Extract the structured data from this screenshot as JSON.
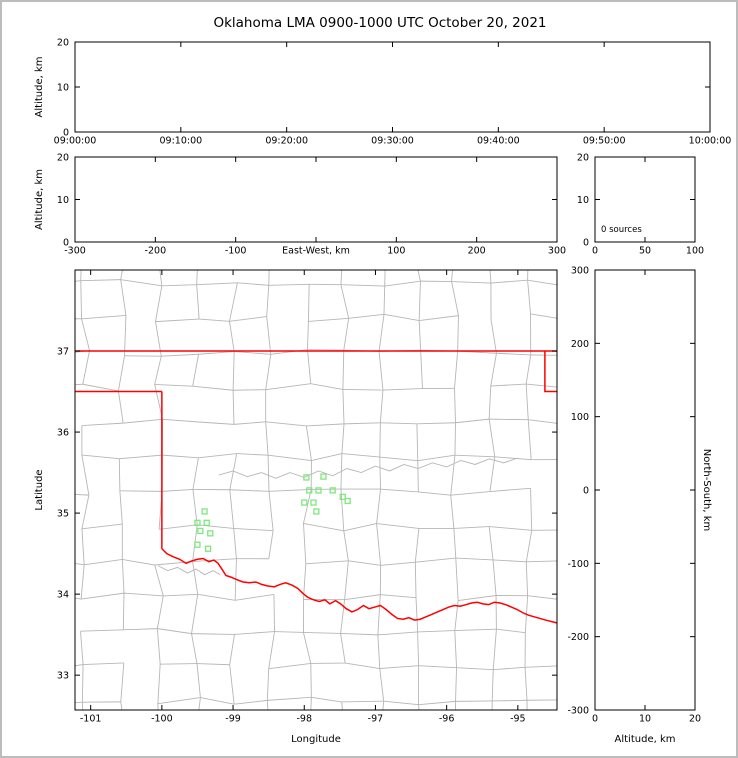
{
  "title": "Oklahoma LMA 0900-1000 UTC October 20, 2021",
  "colors": {
    "axis": "#000000",
    "text": "#000000",
    "county": "#b6b6b6",
    "state_border": "#ff0000",
    "station": "#7de87d",
    "background": "#ffffff",
    "frame": "#bcbcbc"
  },
  "chart_data": [
    {
      "id": "time_height",
      "type": "scatter",
      "title": "",
      "xlabel": "",
      "ylabel": "Altitude, km",
      "xlim": [
        0,
        3600
      ],
      "xticks": [
        0,
        600,
        1200,
        1800,
        2400,
        3000,
        3600
      ],
      "xtick_labels": [
        "09:00:00",
        "09:10:00",
        "09:20:00",
        "09:30:00",
        "09:40:00",
        "09:50:00",
        "10:00:00"
      ],
      "ylim": [
        0,
        20
      ],
      "yticks": [
        0,
        10,
        20
      ],
      "points": []
    },
    {
      "id": "ew_height",
      "type": "scatter",
      "xlabel": "East-West, km",
      "ylabel": "Altitude, km",
      "xlim": [
        -300,
        300
      ],
      "xticks": [
        -300,
        -200,
        -100,
        0,
        100,
        200,
        300
      ],
      "ylim": [
        0,
        20
      ],
      "yticks": [
        0,
        10,
        20
      ],
      "points": []
    },
    {
      "id": "alt_histogram",
      "type": "line",
      "annotation": "0 sources",
      "xlim": [
        0,
        100
      ],
      "xticks": [
        0,
        50,
        100
      ],
      "ylim": [
        0,
        20
      ],
      "yticks": [
        0,
        10,
        20
      ],
      "points": []
    },
    {
      "id": "plan_map",
      "type": "scatter",
      "xlabel": "Longitude",
      "ylabel": "Latitude",
      "xlim": [
        -101.22,
        -94.45
      ],
      "ylim": [
        32.57,
        38.0
      ],
      "xticks": [
        -101,
        -100,
        -99,
        -98,
        -97,
        -96,
        -95
      ],
      "yticks": [
        33,
        34,
        35,
        36,
        37
      ],
      "stations": [
        [
          -97.97,
          35.44
        ],
        [
          -97.73,
          35.45
        ],
        [
          -97.93,
          35.28
        ],
        [
          -97.8,
          35.28
        ],
        [
          -97.6,
          35.28
        ],
        [
          -98.0,
          35.13
        ],
        [
          -97.87,
          35.13
        ],
        [
          -97.46,
          35.2
        ],
        [
          -97.39,
          35.15
        ],
        [
          -97.83,
          35.02
        ],
        [
          -99.4,
          35.02
        ],
        [
          -99.5,
          34.88
        ],
        [
          -99.37,
          34.88
        ],
        [
          -99.46,
          34.78
        ],
        [
          -99.32,
          34.75
        ],
        [
          -99.5,
          34.61
        ],
        [
          -99.35,
          34.56
        ]
      ],
      "state_border": {
        "kansas_line": [
          [
            -101.22,
            37.0
          ],
          [
            -94.45,
            37.0
          ]
        ],
        "northeast_jog": [
          [
            -94.62,
            37.0
          ],
          [
            -94.62,
            36.5
          ],
          [
            -94.43,
            36.5
          ],
          [
            -94.43,
            33.64
          ]
        ],
        "panhandle_south": [
          [
            -101.22,
            36.5
          ],
          [
            -100.0,
            36.5
          ]
        ],
        "west_border": [
          [
            -100.0,
            36.5
          ],
          [
            -100.0,
            34.56
          ]
        ],
        "red_river": [
          [
            -100.0,
            34.56
          ],
          [
            -99.93,
            34.5
          ],
          [
            -99.84,
            34.46
          ],
          [
            -99.75,
            34.43
          ],
          [
            -99.66,
            34.38
          ],
          [
            -99.58,
            34.41
          ],
          [
            -99.5,
            34.43
          ],
          [
            -99.42,
            34.44
          ],
          [
            -99.34,
            34.4
          ],
          [
            -99.27,
            34.42
          ],
          [
            -99.21,
            34.38
          ],
          [
            -99.15,
            34.3
          ],
          [
            -99.1,
            34.23
          ],
          [
            -99.03,
            34.21
          ],
          [
            -98.95,
            34.18
          ],
          [
            -98.86,
            34.15
          ],
          [
            -98.77,
            34.14
          ],
          [
            -98.68,
            34.15
          ],
          [
            -98.6,
            34.12
          ],
          [
            -98.51,
            34.1
          ],
          [
            -98.42,
            34.09
          ],
          [
            -98.34,
            34.12
          ],
          [
            -98.26,
            34.14
          ],
          [
            -98.17,
            34.11
          ],
          [
            -98.09,
            34.07
          ],
          [
            -98.02,
            34.01
          ],
          [
            -97.95,
            33.96
          ],
          [
            -97.87,
            33.93
          ],
          [
            -97.79,
            33.91
          ],
          [
            -97.71,
            33.93
          ],
          [
            -97.64,
            33.88
          ],
          [
            -97.56,
            33.92
          ],
          [
            -97.49,
            33.88
          ],
          [
            -97.41,
            33.82
          ],
          [
            -97.33,
            33.78
          ],
          [
            -97.25,
            33.81
          ],
          [
            -97.17,
            33.86
          ],
          [
            -97.09,
            33.82
          ],
          [
            -97.01,
            33.84
          ],
          [
            -96.93,
            33.86
          ],
          [
            -96.85,
            33.81
          ],
          [
            -96.77,
            33.75
          ],
          [
            -96.69,
            33.7
          ],
          [
            -96.61,
            33.69
          ],
          [
            -96.53,
            33.71
          ],
          [
            -96.45,
            33.68
          ],
          [
            -96.37,
            33.69
          ],
          [
            -96.29,
            33.72
          ],
          [
            -96.21,
            33.75
          ],
          [
            -96.13,
            33.78
          ],
          [
            -96.05,
            33.81
          ],
          [
            -95.97,
            33.84
          ],
          [
            -95.89,
            33.86
          ],
          [
            -95.81,
            33.85
          ],
          [
            -95.73,
            33.87
          ],
          [
            -95.65,
            33.89
          ],
          [
            -95.57,
            33.9
          ],
          [
            -95.49,
            33.88
          ],
          [
            -95.41,
            33.87
          ],
          [
            -95.33,
            33.9
          ],
          [
            -95.25,
            33.89
          ],
          [
            -95.17,
            33.87
          ],
          [
            -95.09,
            33.84
          ],
          [
            -95.01,
            33.81
          ],
          [
            -94.93,
            33.77
          ],
          [
            -94.85,
            33.74
          ],
          [
            -94.77,
            33.72
          ],
          [
            -94.69,
            33.7
          ],
          [
            -94.61,
            33.68
          ],
          [
            -94.43,
            33.64
          ]
        ]
      },
      "extra_lines": [
        [
          [
            -99.2,
            35.47
          ],
          [
            -99.0,
            35.52
          ],
          [
            -98.8,
            35.45
          ],
          [
            -98.6,
            35.5
          ],
          [
            -98.4,
            35.43
          ],
          [
            -98.2,
            35.5
          ],
          [
            -98.0,
            35.44
          ],
          [
            -97.8,
            35.52
          ],
          [
            -97.6,
            35.46
          ],
          [
            -97.4,
            35.55
          ],
          [
            -97.2,
            35.5
          ],
          [
            -97.0,
            35.58
          ],
          [
            -96.8,
            35.52
          ],
          [
            -96.6,
            35.6
          ],
          [
            -96.4,
            35.55
          ],
          [
            -96.2,
            35.62
          ],
          [
            -96.0,
            35.57
          ],
          [
            -95.8,
            35.65
          ],
          [
            -95.6,
            35.6
          ],
          [
            -95.4,
            35.67
          ],
          [
            -95.2,
            35.62
          ],
          [
            -95.0,
            35.68
          ]
        ],
        [
          [
            -100.05,
            34.35
          ],
          [
            -99.92,
            34.29
          ],
          [
            -99.78,
            34.33
          ],
          [
            -99.64,
            34.26
          ],
          [
            -99.52,
            34.31
          ],
          [
            -99.4,
            34.24
          ],
          [
            -99.28,
            34.29
          ],
          [
            -99.18,
            34.24
          ]
        ]
      ],
      "counties": {
        "seed": 13,
        "lon0": -101.6,
        "lat0": 32.25,
        "cols": 15,
        "rows": 15,
        "lon_step": 0.52,
        "lat_step": 0.43,
        "jitter_lon": 0.13,
        "jitter_lat": 0.1,
        "skip": 0.12
      }
    },
    {
      "id": "ns_height",
      "type": "scatter",
      "xlabel": "Altitude, km",
      "ylabel": "North-South, km",
      "xlim": [
        0,
        20
      ],
      "xticks": [
        0,
        10,
        20
      ],
      "ylim": [
        -300,
        300
      ],
      "yticks": [
        -300,
        -200,
        -100,
        0,
        100,
        200,
        300
      ],
      "points": []
    }
  ]
}
